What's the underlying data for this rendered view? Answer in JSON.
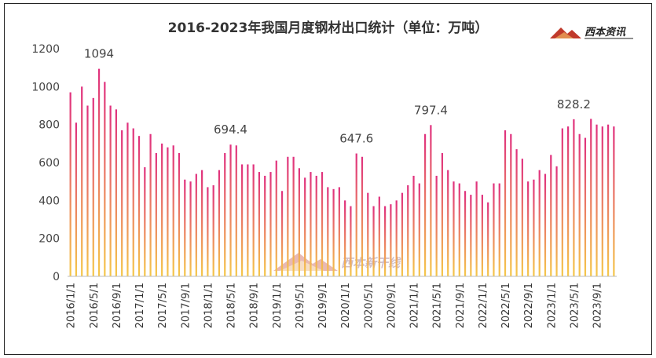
{
  "title": "2016-2023年我国月度钢材出口统计（单位：万吨）",
  "logo": {
    "text": "西本资讯",
    "icon": "xiben-logo-icon"
  },
  "watermark": {
    "text": "西本新干线",
    "icon": "xiben-watermark-icon"
  },
  "colors": {
    "bar_top": "#e0307e",
    "bar_bottom": "#f5c84a",
    "axis": "#bbbbbb",
    "text": "#333333"
  },
  "chart_data": {
    "type": "bar",
    "title": "2016-2023年我国月度钢材出口统计（单位：万吨）",
    "xlabel": "",
    "ylabel": "",
    "ylim": [
      0,
      1200
    ],
    "yticks": [
      0,
      200,
      400,
      600,
      800,
      1000,
      1200
    ],
    "grid": false,
    "legend": "none",
    "x": [
      "2016/1/1",
      "2016/2/1",
      "2016/3/1",
      "2016/4/1",
      "2016/5/1",
      "2016/6/1",
      "2016/7/1",
      "2016/8/1",
      "2016/9/1",
      "2016/10/1",
      "2016/11/1",
      "2016/12/1",
      "2017/1/1",
      "2017/2/1",
      "2017/3/1",
      "2017/4/1",
      "2017/5/1",
      "2017/6/1",
      "2017/7/1",
      "2017/8/1",
      "2017/9/1",
      "2017/10/1",
      "2017/11/1",
      "2017/12/1",
      "2018/1/1",
      "2018/2/1",
      "2018/3/1",
      "2018/4/1",
      "2018/5/1",
      "2018/6/1",
      "2018/7/1",
      "2018/8/1",
      "2018/9/1",
      "2018/10/1",
      "2018/11/1",
      "2018/12/1",
      "2019/1/1",
      "2019/2/1",
      "2019/3/1",
      "2019/4/1",
      "2019/5/1",
      "2019/6/1",
      "2019/7/1",
      "2019/8/1",
      "2019/9/1",
      "2019/10/1",
      "2019/11/1",
      "2019/12/1",
      "2020/1/1",
      "2020/2/1",
      "2020/3/1",
      "2020/4/1",
      "2020/5/1",
      "2020/6/1",
      "2020/7/1",
      "2020/8/1",
      "2020/9/1",
      "2020/10/1",
      "2020/11/1",
      "2020/12/1",
      "2021/1/1",
      "2021/2/1",
      "2021/3/1",
      "2021/4/1",
      "2021/5/1",
      "2021/6/1",
      "2021/7/1",
      "2021/8/1",
      "2021/9/1",
      "2021/10/1",
      "2021/11/1",
      "2021/12/1",
      "2022/1/1",
      "2022/2/1",
      "2022/3/1",
      "2022/4/1",
      "2022/5/1",
      "2022/6/1",
      "2022/7/1",
      "2022/8/1",
      "2022/9/1",
      "2022/10/1",
      "2022/11/1",
      "2022/12/1",
      "2023/1/1",
      "2023/2/1",
      "2023/3/1",
      "2023/4/1",
      "2023/5/1",
      "2023/6/1",
      "2023/7/1",
      "2023/8/1",
      "2023/9/1",
      "2023/10/1",
      "2023/11/1",
      "2023/12/1"
    ],
    "xtick_labels": [
      "2016/1/1",
      "2016/5/1",
      "2016/9/1",
      "2017/1/1",
      "2017/5/1",
      "2017/9/1",
      "2018/1/1",
      "2018/5/1",
      "2018/9/1",
      "2019/1/1",
      "2019/5/1",
      "2019/9/1",
      "2020/1/1",
      "2020/5/1",
      "2020/9/1",
      "2021/1/1",
      "2021/5/1",
      "2021/9/1",
      "2022/1/1",
      "2022/5/1",
      "2022/9/1",
      "2023/1/1",
      "2023/5/1",
      "2023/9/1"
    ],
    "values": [
      970,
      810,
      1000,
      900,
      940,
      1094,
      1025,
      900,
      880,
      770,
      810,
      780,
      740,
      575,
      750,
      650,
      700,
      680,
      690,
      650,
      510,
      500,
      540,
      560,
      470,
      480,
      560,
      650,
      694.4,
      690,
      590,
      590,
      590,
      550,
      530,
      550,
      610,
      450,
      630,
      630,
      570,
      520,
      550,
      530,
      550,
      470,
      460,
      470,
      400,
      370,
      647.6,
      630,
      440,
      370,
      420,
      370,
      380,
      400,
      440,
      480,
      530,
      490,
      750,
      797.4,
      530,
      650,
      560,
      500,
      490,
      450,
      430,
      500,
      430,
      390,
      490,
      490,
      770,
      750,
      670,
      620,
      500,
      510,
      560,
      540,
      640,
      580,
      780,
      790,
      828.2,
      750,
      730,
      830,
      800,
      790,
      800,
      790
    ],
    "data_labels": [
      {
        "x": "2016/6/1",
        "value": "1094"
      },
      {
        "x": "2018/5/1",
        "value": "694.4"
      },
      {
        "x": "2020/3/1",
        "value": "647.6"
      },
      {
        "x": "2021/4/1",
        "value": "797.4"
      },
      {
        "x": "2023/5/1",
        "value": "828.2"
      }
    ]
  }
}
